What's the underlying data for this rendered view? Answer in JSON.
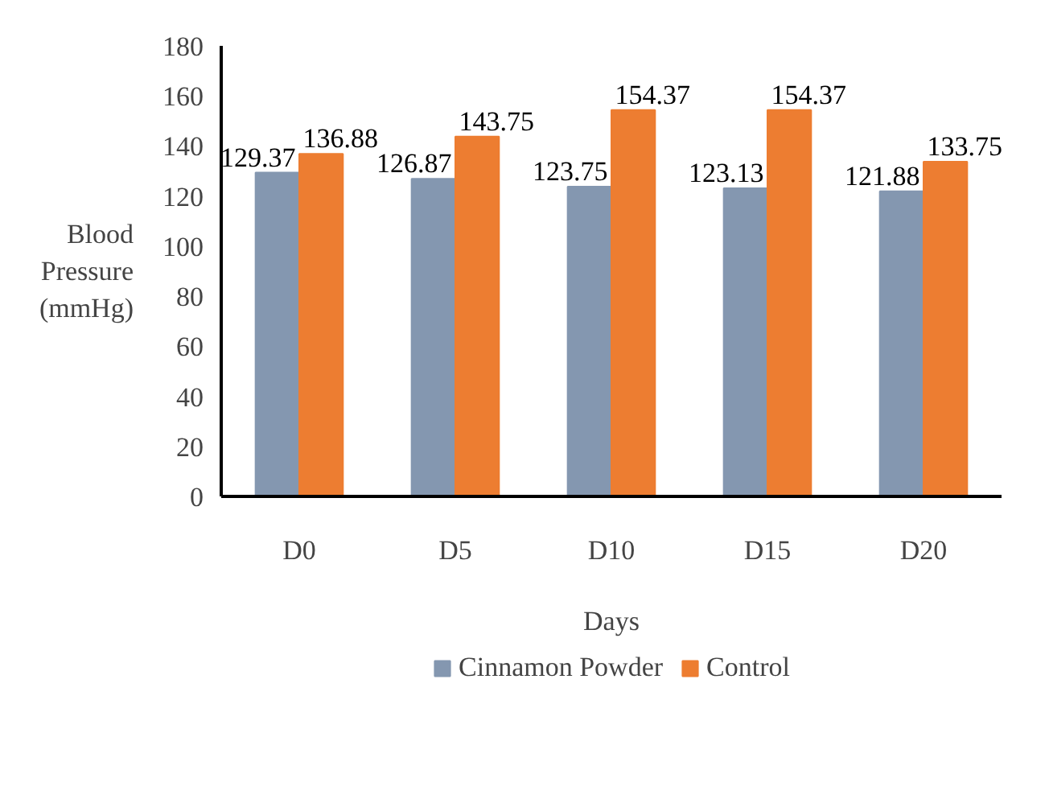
{
  "chart_data": {
    "type": "bar",
    "xlabel": "Days",
    "ylabel": "Blood Pressure (mmHg)",
    "categories": [
      "D0",
      "D5",
      "D10",
      "D15",
      "D20"
    ],
    "series": [
      {
        "name": "Cinnamon Powder",
        "color": "#8497b0",
        "values": [
          129.37,
          126.87,
          123.75,
          123.13,
          121.88
        ]
      },
      {
        "name": "Control",
        "color": "#ed7d31",
        "values": [
          136.88,
          143.75,
          154.37,
          154.37,
          133.75
        ]
      }
    ],
    "ylim": [
      0,
      180
    ],
    "yticks": [
      0,
      20,
      40,
      60,
      80,
      100,
      120,
      140,
      160,
      180
    ],
    "grid": false,
    "legend": "bottom",
    "data_labels": true
  }
}
